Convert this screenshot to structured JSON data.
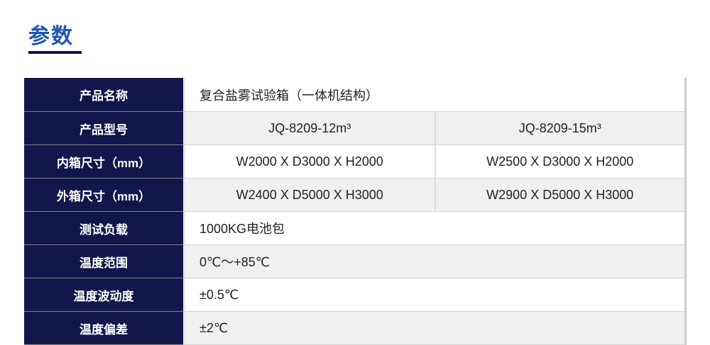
{
  "title": "参数",
  "rows": [
    {
      "label": "产品名称",
      "values": [
        "复合盐雾试验箱（一体机结构）"
      ]
    },
    {
      "label": "产品型号",
      "values": [
        "JQ-8209-12m³",
        "JQ-8209-15m³"
      ]
    },
    {
      "label": "内箱尺寸（mm）",
      "values": [
        "W2000 X D3000 X H2000",
        "W2500 X D3000 X H2000"
      ]
    },
    {
      "label": "外箱尺寸（mm）",
      "values": [
        "W2400 X D5000 X H3000",
        "W2900 X D5000 X H3000"
      ]
    },
    {
      "label": "测试负载",
      "values": [
        "1000KG电池包"
      ]
    },
    {
      "label": "温度范围",
      "values": [
        "0℃～+85℃"
      ]
    },
    {
      "label": "温度波动度",
      "values": [
        "±0.5℃"
      ]
    },
    {
      "label": "温度偏差",
      "values": [
        "±2℃"
      ]
    }
  ]
}
